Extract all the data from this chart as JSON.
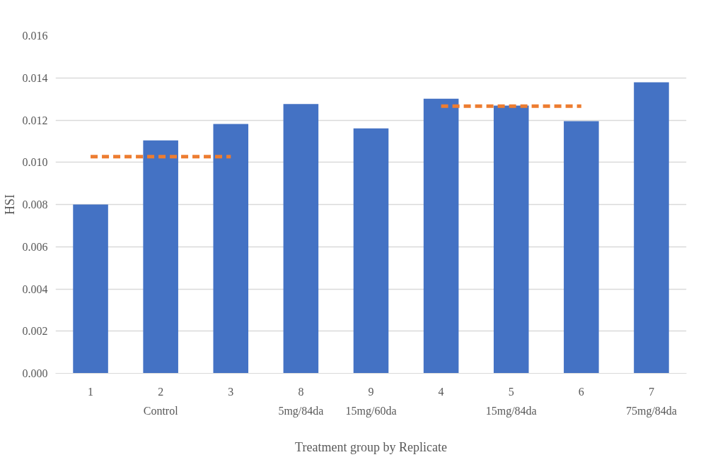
{
  "chart_data": {
    "type": "bar",
    "xlabel": "Treatment group by Replicate",
    "ylabel": "HSI",
    "categories": [
      "1",
      "2",
      "3",
      "8",
      "9",
      "4",
      "5",
      "6",
      "7"
    ],
    "series": [
      {
        "color": "#4472c4",
        "values": [
          0.008,
          0.01104,
          0.01182,
          0.01276,
          0.01161,
          0.01301,
          0.01269,
          0.01195,
          0.01379
        ]
      },
      {
        "type": "line",
        "color": "#ed7d31",
        "line_style": "dashed",
        "x": [
          "1",
          "2",
          "3"
        ],
        "values": [
          0.01027,
          0.01027,
          0.01027
        ]
      },
      {
        "type": "line",
        "color": "#ed7d31",
        "line_style": "dashed",
        "x": [
          "4",
          "5",
          "6"
        ],
        "values": [
          0.01266,
          0.01266,
          0.01266
        ]
      }
    ],
    "annotations": [
      "Control",
      "5mg/84da",
      "15mg/60da",
      "15mg/84da",
      "75mg/84da"
    ],
    "ylim": [
      0,
      0.016
    ],
    "yticks": [
      {
        "value": 0,
        "label": "0.000"
      },
      {
        "value": 0.002,
        "label": "0.002"
      },
      {
        "value": 0.004,
        "label": "0.004"
      },
      {
        "value": 0.006,
        "label": "0.006"
      },
      {
        "value": 0.008,
        "label": "0.008"
      },
      {
        "value": 0.01,
        "label": "0.010"
      },
      {
        "value": 0.012,
        "label": "0.012"
      },
      {
        "value": 0.014,
        "label": "0.014"
      },
      {
        "value": 0.016,
        "label": "0.016"
      }
    ],
    "grid": "y"
  }
}
